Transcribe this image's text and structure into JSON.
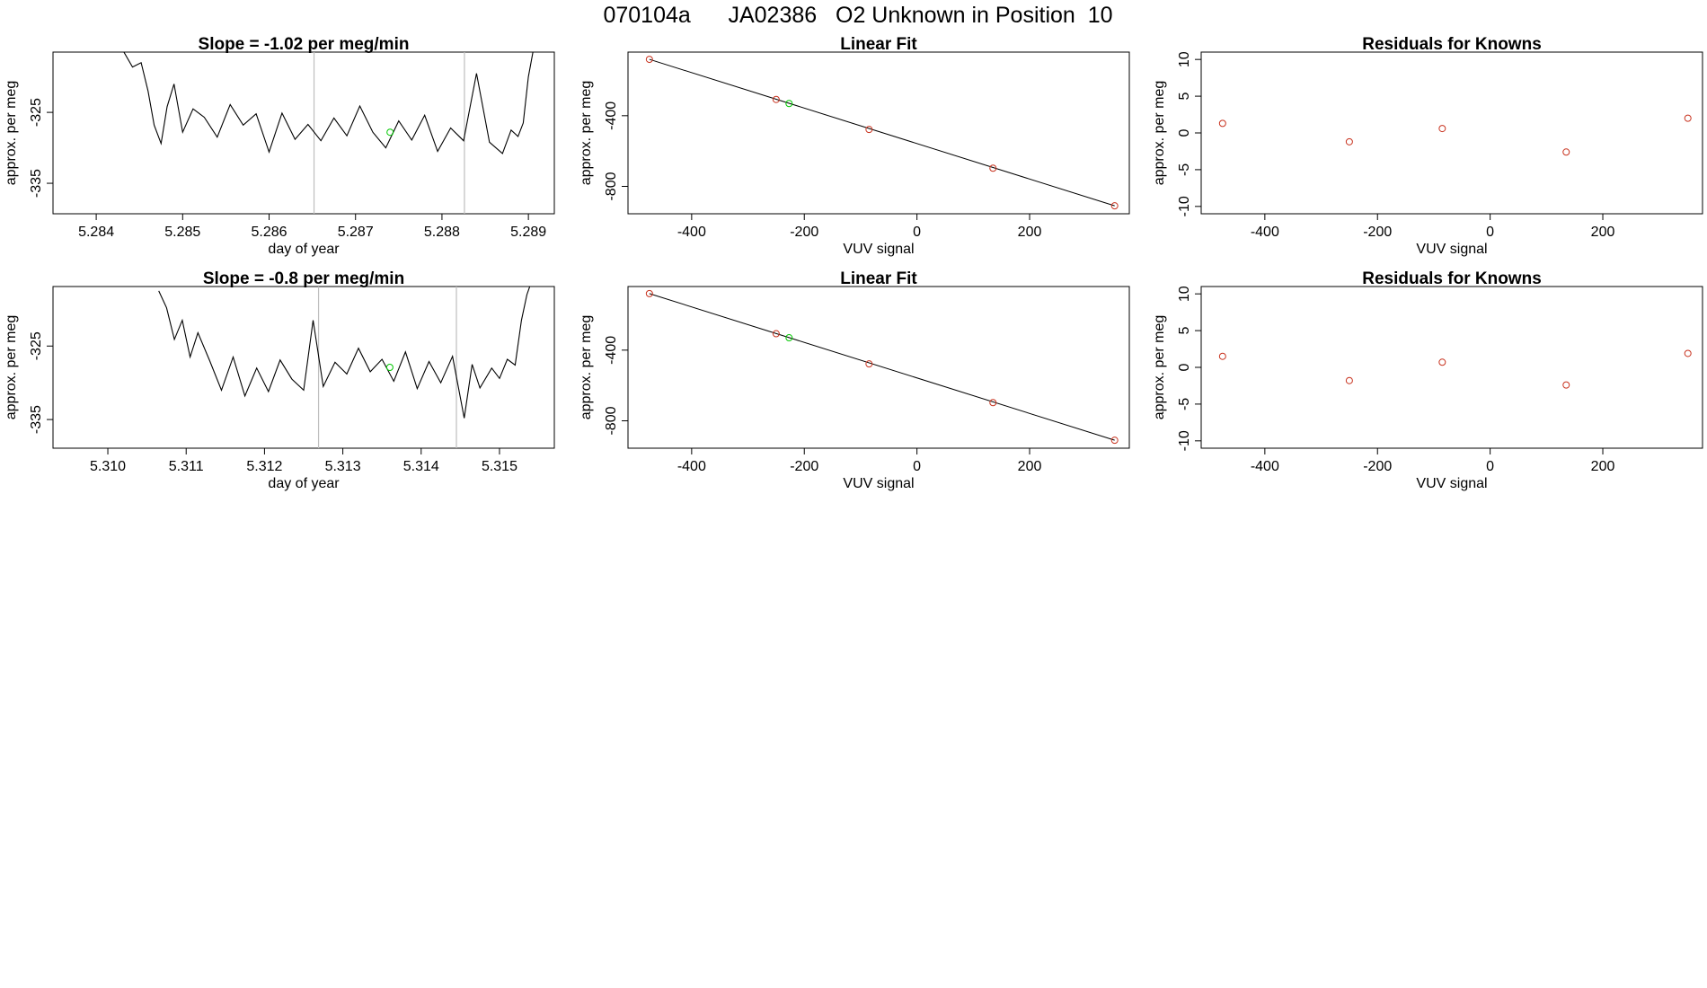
{
  "header": {
    "title": "070104a      JA02386   O2 Unknown in Position  10"
  },
  "colors": {
    "line": "#000000",
    "known_points": "#c8321e",
    "unknown_point": "#00c800",
    "vertical_markers": "#bebebe",
    "frame": "#000000"
  },
  "chart_data": [
    {
      "id": "row1-timeseries",
      "type": "line",
      "title": "Slope =  -1.02  per meg/min",
      "xlabel": "day of year",
      "ylabel": "approx. per meg",
      "xlim": [
        5.2835,
        5.2893
      ],
      "ylim": [
        -339.3,
        -316.5
      ],
      "xticks": [
        5.284,
        5.285,
        5.286,
        5.287,
        5.288,
        5.289
      ],
      "xtick_labels": [
        "5.284",
        "5.285",
        "5.286",
        "5.287",
        "5.288",
        "5.289"
      ],
      "yticks": [
        -325,
        -335
      ],
      "ytick_labels": [
        "-325",
        "-335"
      ],
      "vlines": [
        5.28652,
        5.28826
      ],
      "unknown_marker": {
        "x": 5.2874,
        "y": -327.8
      },
      "series": [
        {
          "x": [
            5.28432,
            5.28442,
            5.28452,
            5.2846,
            5.28467,
            5.28475,
            5.28482,
            5.2849,
            5.285,
            5.28512,
            5.28525,
            5.2854,
            5.28555,
            5.2857,
            5.28585,
            5.286,
            5.28615,
            5.2863,
            5.28645,
            5.2866,
            5.28675,
            5.2869,
            5.28705,
            5.2872,
            5.28735,
            5.2875,
            5.28765,
            5.2878,
            5.28795,
            5.2881,
            5.28825,
            5.2884,
            5.28855,
            5.2887,
            5.2888,
            5.28888,
            5.28894,
            5.289,
            5.28906
          ],
          "y": [
            -316.5,
            -318.6,
            -318.0,
            -322.0,
            -326.8,
            -329.4,
            -324.2,
            -321.0,
            -327.8,
            -324.5,
            -325.7,
            -328.5,
            -323.9,
            -326.8,
            -325.2,
            -330.6,
            -325.1,
            -328.8,
            -326.7,
            -329.0,
            -325.8,
            -328.3,
            -324.1,
            -327.8,
            -330.0,
            -326.2,
            -328.9,
            -325.4,
            -330.5,
            -327.2,
            -329.0,
            -319.5,
            -329.2,
            -330.8,
            -327.5,
            -328.4,
            -326.5,
            -320.0,
            -316.0
          ]
        }
      ]
    },
    {
      "id": "row1-linear-fit",
      "type": "scatter",
      "title": "Linear Fit",
      "xlabel": "VUV signal",
      "ylabel": "approx. per meg",
      "xlim": [
        -513,
        377
      ],
      "ylim": [
        -955,
        -40
      ],
      "xticks": [
        -400,
        -200,
        0,
        200
      ],
      "xtick_labels": [
        "-400",
        "-200",
        "0",
        "200"
      ],
      "yticks": [
        -400,
        -800
      ],
      "ytick_labels": [
        "-400",
        "-800"
      ],
      "fit_line": {
        "x": [
          -475,
          351
        ],
        "y": [
          -81,
          -910
        ]
      },
      "known_points": {
        "x": [
          -475,
          -250,
          -85,
          135,
          351
        ],
        "y": [
          -81,
          -308,
          -478,
          -697,
          -910
        ]
      },
      "unknown_points": {
        "x": [
          -227
        ],
        "y": [
          -331
        ]
      }
    },
    {
      "id": "row1-residuals",
      "type": "scatter",
      "title": "Residuals for Knowns",
      "xlabel": "VUV signal",
      "ylabel": "approx. per meg",
      "xlim": [
        -513,
        377
      ],
      "ylim": [
        -11,
        11
      ],
      "xticks": [
        -400,
        -200,
        0,
        200
      ],
      "xtick_labels": [
        "-400",
        "-200",
        "0",
        "200"
      ],
      "yticks": [
        10,
        5,
        0,
        -5,
        -10
      ],
      "ytick_labels": [
        "10",
        "5",
        "0",
        "-5",
        "-10"
      ],
      "points": {
        "x": [
          -475,
          -250,
          -85,
          135,
          351
        ],
        "y": [
          1.3,
          -1.2,
          0.6,
          -2.6,
          2.0
        ]
      }
    },
    {
      "id": "row2-timeseries",
      "type": "line",
      "title": "Slope =  -0.8  per meg/min",
      "xlabel": "day of year",
      "ylabel": "approx. per meg",
      "xlim": [
        5.3093,
        5.3157
      ],
      "ylim": [
        -338.9,
        -316.9
      ],
      "xticks": [
        5.31,
        5.311,
        5.312,
        5.313,
        5.314,
        5.315
      ],
      "xtick_labels": [
        "5.310",
        "5.311",
        "5.312",
        "5.313",
        "5.314",
        "5.315"
      ],
      "yticks": [
        -325,
        -335
      ],
      "ytick_labels": [
        "-325",
        "-335"
      ],
      "vlines": [
        5.31269,
        5.31445
      ],
      "unknown_marker": {
        "x": 5.3136,
        "y": -327.9
      },
      "series": [
        {
          "x": [
            5.31065,
            5.31075,
            5.31085,
            5.31095,
            5.31105,
            5.31115,
            5.3113,
            5.31145,
            5.3116,
            5.31175,
            5.3119,
            5.31205,
            5.3122,
            5.31235,
            5.3125,
            5.31262,
            5.31275,
            5.3129,
            5.31305,
            5.3132,
            5.31335,
            5.3135,
            5.31365,
            5.3138,
            5.31395,
            5.3141,
            5.31425,
            5.3144,
            5.31455,
            5.31465,
            5.31475,
            5.3149,
            5.315,
            5.3151,
            5.3152,
            5.31528,
            5.31535,
            5.3154
          ],
          "y": [
            -317.5,
            -319.8,
            -324.1,
            -321.5,
            -326.5,
            -323.2,
            -327.0,
            -331.0,
            -326.5,
            -331.8,
            -328.0,
            -331.2,
            -326.9,
            -329.5,
            -331.0,
            -321.5,
            -330.5,
            -327.2,
            -328.8,
            -325.3,
            -328.5,
            -326.8,
            -329.8,
            -325.8,
            -330.8,
            -327.1,
            -330.0,
            -326.4,
            -334.8,
            -327.5,
            -330.7,
            -328.0,
            -329.4,
            -326.8,
            -327.6,
            -321.5,
            -318.0,
            -316.5
          ]
        }
      ]
    },
    {
      "id": "row2-linear-fit",
      "type": "scatter",
      "title": "Linear Fit",
      "xlabel": "VUV signal",
      "ylabel": "approx. per meg",
      "xlim": [
        -513,
        377
      ],
      "ylim": [
        -955,
        -40
      ],
      "xticks": [
        -400,
        -200,
        0,
        200
      ],
      "xtick_labels": [
        "-400",
        "-200",
        "0",
        "200"
      ],
      "yticks": [
        -400,
        -800
      ],
      "ytick_labels": [
        "-400",
        "-800"
      ],
      "fit_line": {
        "x": [
          -475,
          351
        ],
        "y": [
          -80,
          -910
        ]
      },
      "known_points": {
        "x": [
          -475,
          -250,
          -85,
          135,
          351
        ],
        "y": [
          -80,
          -307,
          -478,
          -697,
          -910
        ]
      },
      "unknown_points": {
        "x": [
          -227
        ],
        "y": [
          -330
        ]
      }
    },
    {
      "id": "row2-residuals",
      "type": "scatter",
      "title": "Residuals for Knowns",
      "xlabel": "VUV signal",
      "ylabel": "approx. per meg",
      "xlim": [
        -513,
        377
      ],
      "ylim": [
        -11,
        11
      ],
      "xticks": [
        -400,
        -200,
        0,
        200
      ],
      "xtick_labels": [
        "-400",
        "-200",
        "0",
        "200"
      ],
      "yticks": [
        10,
        5,
        0,
        -5,
        -10
      ],
      "ytick_labels": [
        "10",
        "5",
        "0",
        "-5",
        "-10"
      ],
      "points": {
        "x": [
          -475,
          -250,
          -85,
          135,
          351
        ],
        "y": [
          1.5,
          -1.8,
          0.7,
          -2.4,
          1.9
        ]
      }
    }
  ]
}
